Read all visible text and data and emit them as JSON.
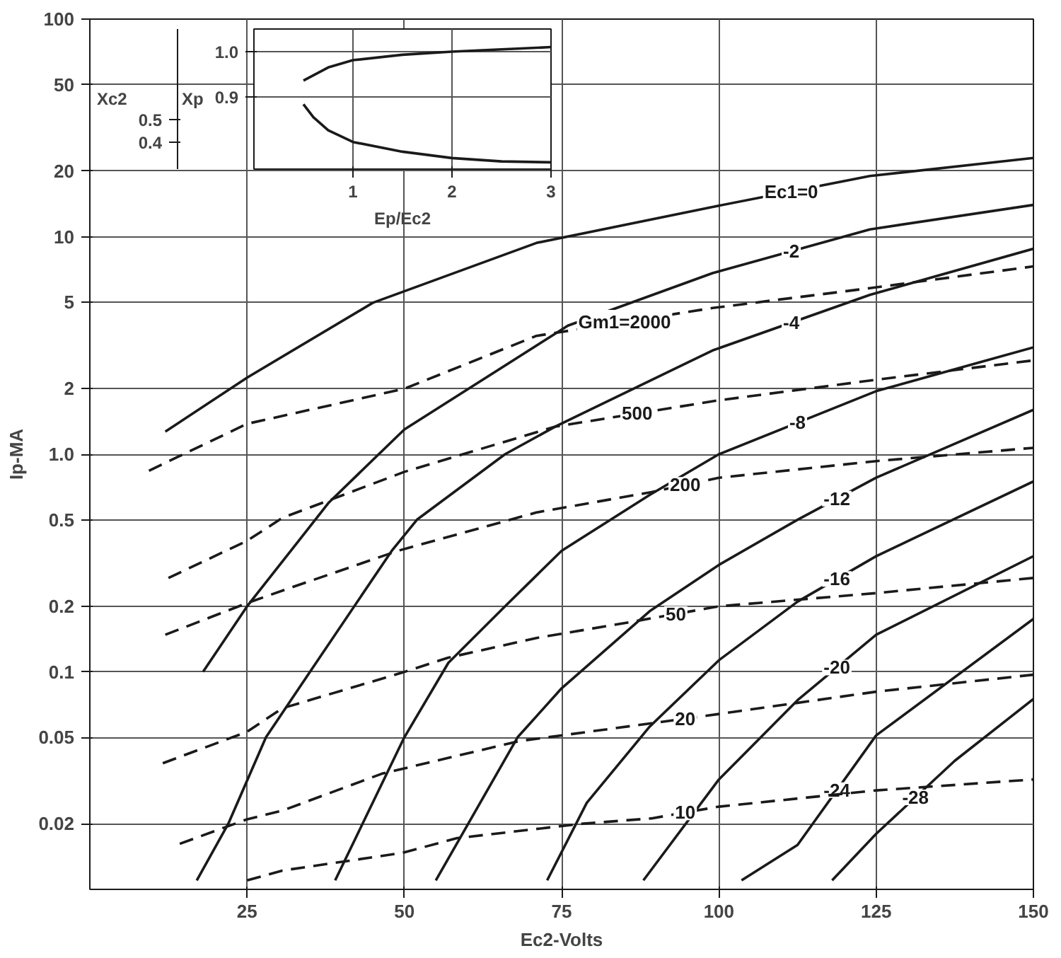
{
  "chart_data": [
    {
      "type": "line",
      "xlabel": "Ec2-Volts",
      "ylabel": "Ip-MA",
      "log": true,
      "grid": true,
      "xlim": [
        0,
        150
      ],
      "xticks": [
        25,
        50,
        75,
        100,
        125,
        150
      ],
      "ylim": [
        0.01,
        100
      ],
      "yticks": [
        0.02,
        0.05,
        0.1,
        0.2,
        0.5,
        {
          "value": 1,
          "label": "1.0"
        },
        2,
        5,
        10,
        20,
        50,
        100
      ],
      "series": [
        {
          "name": "Ec1=0",
          "color": "#1a1a1a",
          "line_style": "solid",
          "x": [
            12,
            25,
            45,
            71,
            99,
            124,
            150
          ],
          "values": [
            1.27,
            2.25,
            4.97,
            9.36,
            13.7,
            19,
            23
          ]
        },
        {
          "name": "-2",
          "color": "#1a1a1a",
          "line_style": "solid",
          "x": [
            18,
            25,
            38,
            50,
            76,
            99,
            124,
            150
          ],
          "values": [
            0.1,
            0.2,
            0.6,
            1.3,
            3.9,
            6.8,
            10.8,
            14
          ]
        },
        {
          "name": "-4",
          "color": "#1a1a1a",
          "line_style": "solid",
          "x": [
            17,
            22,
            28,
            35,
            48,
            52,
            66,
            74,
            99,
            124,
            150
          ],
          "values": [
            0.011,
            0.02,
            0.05,
            0.1,
            0.36,
            0.5,
            1.0,
            1.34,
            3.0,
            5.4,
            8.8
          ]
        },
        {
          "name": "-8",
          "color": "#1a1a1a",
          "line_style": "solid",
          "x": [
            39,
            50,
            57,
            66,
            75,
            89,
            100,
            125,
            150
          ],
          "values": [
            0.011,
            0.05,
            0.11,
            0.2,
            0.36,
            0.65,
            1.0,
            1.95,
            3.1
          ]
        },
        {
          "name": "-12",
          "color": "#1a1a1a",
          "line_style": "solid",
          "x": [
            55,
            68,
            75,
            89,
            100,
            112.5,
            125,
            150
          ],
          "values": [
            0.011,
            0.05,
            0.084,
            0.19,
            0.31,
            0.5,
            0.78,
            1.6
          ]
        },
        {
          "name": "-16",
          "color": "#1a1a1a",
          "line_style": "solid",
          "x": [
            72.7,
            79,
            89,
            100,
            112.5,
            125,
            150
          ],
          "values": [
            0.011,
            0.025,
            0.056,
            0.113,
            0.21,
            0.34,
            0.75
          ]
        },
        {
          "name": "-20",
          "color": "#1a1a1a",
          "line_style": "solid",
          "x": [
            88,
            100,
            112.5,
            125,
            150
          ],
          "values": [
            0.011,
            0.032,
            0.074,
            0.148,
            0.34
          ]
        },
        {
          "name": "-24",
          "color": "#1a1a1a",
          "line_style": "solid",
          "x": [
            103.6,
            112.5,
            125,
            150
          ],
          "values": [
            0.011,
            0.016,
            0.051,
            0.175
          ]
        },
        {
          "name": "-28",
          "color": "#1a1a1a",
          "line_style": "solid",
          "x": [
            118,
            125,
            137.5,
            150
          ],
          "values": [
            0.011,
            0.018,
            0.039,
            0.075
          ]
        },
        {
          "name": "Gm1=2000",
          "color": "#1a1a1a",
          "line_style": "dashed",
          "x": [
            9.4,
            25,
            50,
            71,
            99,
            124,
            150
          ],
          "values": [
            0.84,
            1.38,
            2.0,
            3.5,
            4.7,
            5.8,
            7.3
          ]
        },
        {
          "name": "500",
          "color": "#1a1a1a",
          "line_style": "dashed",
          "x": [
            12.5,
            25,
            30.6,
            38.4,
            50,
            74,
            100,
            125,
            150
          ],
          "values": [
            0.27,
            0.4,
            0.51,
            0.62,
            0.83,
            1.34,
            1.77,
            2.2,
            2.7
          ]
        },
        {
          "name": "200",
          "color": "#1a1a1a",
          "line_style": "dashed",
          "x": [
            12,
            25,
            31.3,
            49,
            71,
            89.3,
            100,
            125,
            150
          ],
          "values": [
            0.148,
            0.207,
            0.24,
            0.36,
            0.54,
            0.67,
            0.78,
            0.93,
            1.07
          ]
        },
        {
          "name": "50",
          "color": "#1a1a1a",
          "line_style": "dashed",
          "x": [
            11.6,
            25,
            30.6,
            49.6,
            56.9,
            71,
            86.3,
            100,
            125,
            150
          ],
          "values": [
            0.038,
            0.053,
            0.068,
            0.099,
            0.116,
            0.143,
            0.17,
            0.2,
            0.23,
            0.27
          ]
        },
        {
          "name": "20",
          "color": "#1a1a1a",
          "line_style": "dashed",
          "x": [
            14.3,
            25,
            30.6,
            46.4,
            68.2,
            89.3,
            100,
            125,
            150
          ],
          "values": [
            0.0162,
            0.021,
            0.023,
            0.034,
            0.048,
            0.058,
            0.064,
            0.081,
            0.097
          ]
        },
        {
          "name": "10",
          "color": "#1a1a1a",
          "line_style": "dashed",
          "x": [
            25,
            30.6,
            49.6,
            58.4,
            78,
            89.3,
            100,
            125,
            150
          ],
          "values": [
            0.011,
            0.0122,
            0.0147,
            0.0172,
            0.02,
            0.0212,
            0.024,
            0.0285,
            0.032
          ]
        }
      ]
    },
    {
      "type": "line",
      "xlabel": "Ep/Ec2",
      "ylabel": "Xp",
      "y2label": "Xc2",
      "grid": true,
      "xlim": [
        0,
        3
      ],
      "xticks": [
        1,
        2,
        3
      ],
      "ylim": [
        0.74,
        1.05
      ],
      "yticks": [
        0.9,
        {
          "value": 1.0,
          "label": "1.0"
        }
      ],
      "y2lim": [
        0.28,
        0.9
      ],
      "y2ticks": [
        0.4,
        0.5
      ],
      "series": [
        {
          "color": "#1a1a1a",
          "x": [
            0.5,
            0.75,
            1,
            1.5,
            2,
            2.5,
            3
          ],
          "values": [
            0.936,
            0.965,
            0.981,
            0.993,
            1.0,
            1.005,
            1.01
          ]
        },
        {
          "color": "#1a1a1a",
          "axis": "y2",
          "x": [
            0.5,
            0.6,
            0.75,
            1,
            1.5,
            2,
            2.5,
            3
          ],
          "values": [
            0.567,
            0.51,
            0.452,
            0.4,
            0.357,
            0.329,
            0.314,
            0.31
          ]
        }
      ]
    }
  ]
}
